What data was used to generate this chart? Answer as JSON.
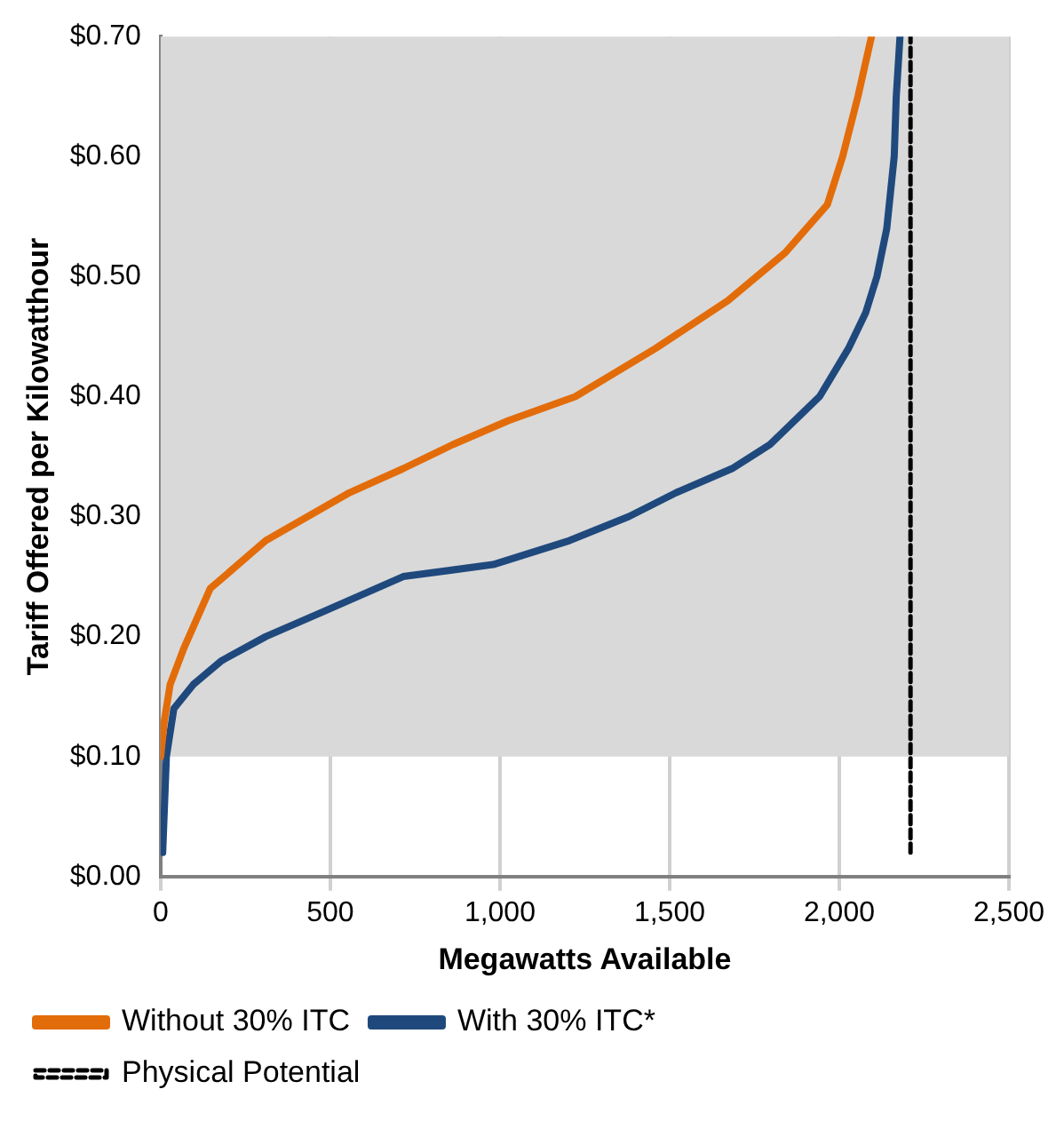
{
  "chart_data": {
    "type": "line",
    "xlabel": "Megawatts Available",
    "ylabel": "Tariff Offered per Kilowatthour",
    "xlim": [
      0,
      2500
    ],
    "xticks": [
      0,
      500,
      {
        "value": 1000,
        "label": "1,000"
      },
      {
        "value": 1500,
        "label": "1,500"
      },
      {
        "value": 2000,
        "label": "2,000"
      },
      {
        "value": 2500,
        "label": "2,500"
      }
    ],
    "ylim": [
      0,
      0.7
    ],
    "yticks": [
      {
        "value": 0,
        "label": "$0.00"
      },
      {
        "value": 0.1,
        "label": "$0.10"
      },
      {
        "value": 0.2,
        "label": "$0.20"
      },
      {
        "value": 0.3,
        "label": "$0.30"
      },
      {
        "value": 0.4,
        "label": "$0.40"
      },
      {
        "value": 0.5,
        "label": "$0.50"
      },
      {
        "value": 0.6,
        "label": "$0.60"
      },
      {
        "value": 0.7,
        "label": "$0.70"
      }
    ],
    "grid": "x",
    "legend": "bottom",
    "marker": "none",
    "bands": [
      {
        "axis": "y",
        "from": 0.1,
        "to": 0.7,
        "color": "#d9d9d9"
      }
    ],
    "series": [
      {
        "name": "Without 30% ITC",
        "color": "#e36c0a",
        "x": [
          0,
          11,
          28,
          68,
          146,
          310,
          557,
          715,
          861,
          1025,
          1222,
          1458,
          1672,
          1841,
          1965,
          2010,
          2055,
          2095
        ],
        "values": [
          0.1,
          0.13,
          0.16,
          0.19,
          0.24,
          0.28,
          0.32,
          0.34,
          0.36,
          0.38,
          0.4,
          0.44,
          0.48,
          0.52,
          0.56,
          0.6,
          0.65,
          0.7
        ]
      },
      {
        "name": "With 30% ITC*",
        "color": "#1f497d",
        "x": [
          6,
          17,
          39,
          96,
          180,
          310,
          473,
          715,
          980,
          1205,
          1380,
          1520,
          1684,
          1796,
          1942,
          2027,
          2078,
          2111,
          2140,
          2162,
          2168,
          2179
        ],
        "values": [
          0.02,
          0.1,
          0.14,
          0.16,
          0.18,
          0.2,
          0.22,
          0.25,
          0.26,
          0.28,
          0.3,
          0.32,
          0.34,
          0.36,
          0.4,
          0.44,
          0.47,
          0.5,
          0.54,
          0.6,
          0.65,
          0.7
        ]
      },
      {
        "name": "Physical Potential",
        "color": "#000000",
        "line_style": "dashed",
        "x": [
          2210,
          2210
        ],
        "values": [
          0.02,
          0.7
        ]
      }
    ]
  }
}
